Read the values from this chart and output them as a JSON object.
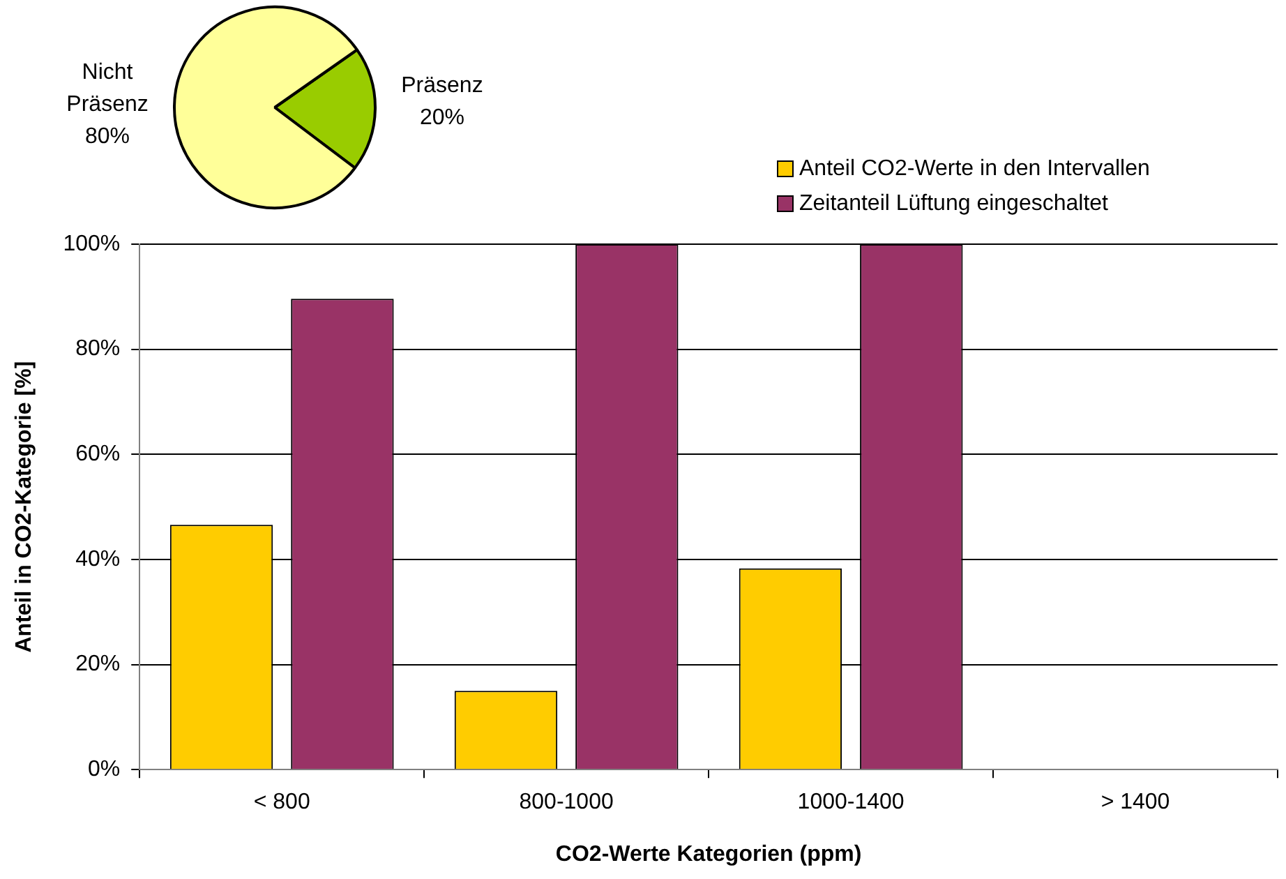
{
  "chart_data": [
    {
      "type": "pie",
      "categories": [
        "Präsenz",
        "Nicht Präsenz"
      ],
      "values": [
        20,
        80
      ],
      "colors": [
        "#99cc00",
        "#ffff99"
      ],
      "value_labels": [
        "20%",
        "80%"
      ]
    },
    {
      "type": "bar",
      "categories": [
        "< 800",
        "800-1000",
        "1000-1400",
        "> 1400"
      ],
      "series": [
        {
          "name": "Anteil CO2-Werte in den Intervallen",
          "color": "#ffcc00",
          "values": [
            46.6,
            15,
            38.3,
            null
          ]
        },
        {
          "name": "Zeitanteil Lüftung eingeschaltet",
          "color": "#993366",
          "values": [
            89.6,
            100,
            100,
            null
          ]
        }
      ],
      "xlabel": "CO2-Werte Kategorien (ppm)",
      "ylabel": "Anteil in CO2-Kategorie [%]",
      "ylim": [
        0,
        100
      ],
      "yticks": [
        {
          "value": 0,
          "label": "0%"
        },
        {
          "value": 20,
          "label": "20%"
        },
        {
          "value": 40,
          "label": "40%"
        },
        {
          "value": 60,
          "label": "60%"
        },
        {
          "value": 80,
          "label": "80%"
        },
        {
          "value": 100,
          "label": "100%"
        }
      ],
      "grid": "y",
      "legend": "top right"
    }
  ]
}
